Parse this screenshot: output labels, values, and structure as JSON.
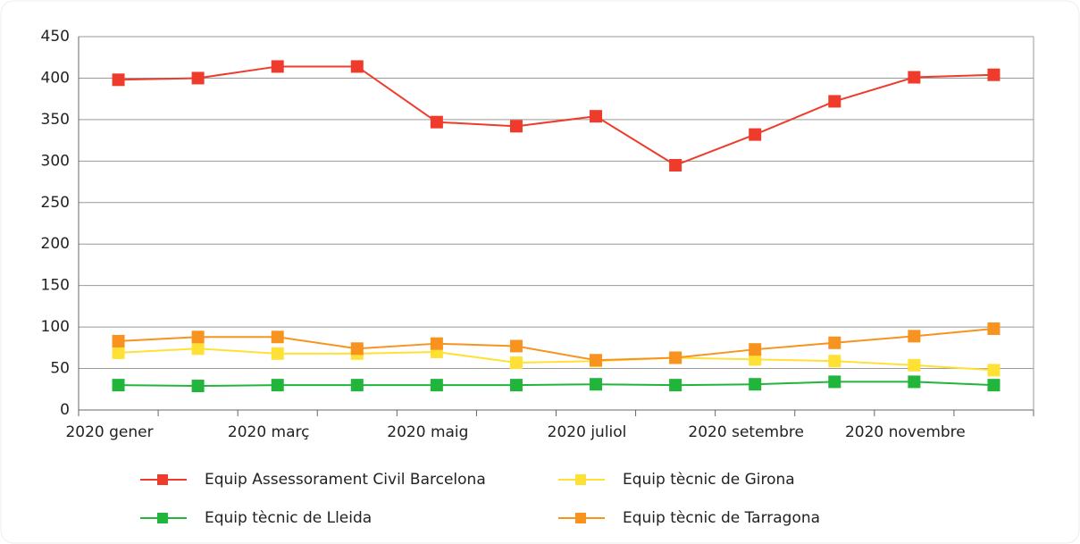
{
  "chart_data": {
    "type": "line",
    "categories": [
      "2020 gener",
      null,
      "2020 març",
      null,
      "2020 maig",
      null,
      "2020 juliol",
      null,
      "2020 setembre",
      null,
      "2020 novembre",
      null
    ],
    "series": [
      {
        "name": "Equip Assessorament Civil Barcelona",
        "color": "#ee3b2c",
        "values": [
          398,
          400,
          414,
          414,
          347,
          342,
          354,
          295,
          332,
          372,
          401,
          404
        ]
      },
      {
        "name": "Equip tècnic de Girona",
        "color": "#ffe135",
        "values": [
          69,
          74,
          68,
          68,
          70,
          57,
          59,
          63,
          61,
          59,
          54,
          48
        ]
      },
      {
        "name": "Equip tècnic de Lleida",
        "color": "#22b53c",
        "values": [
          30,
          29,
          30,
          30,
          30,
          30,
          31,
          30,
          31,
          34,
          34,
          30
        ]
      },
      {
        "name": "Equip tècnic de Tarragona",
        "color": "#f7931e",
        "values": [
          83,
          88,
          88,
          74,
          80,
          77,
          60,
          63,
          73,
          81,
          89,
          98
        ]
      }
    ],
    "ylim": [
      0,
      450
    ],
    "yticks": [
      0,
      50,
      100,
      150,
      200,
      250,
      300,
      350,
      400,
      450
    ],
    "grid": true
  }
}
